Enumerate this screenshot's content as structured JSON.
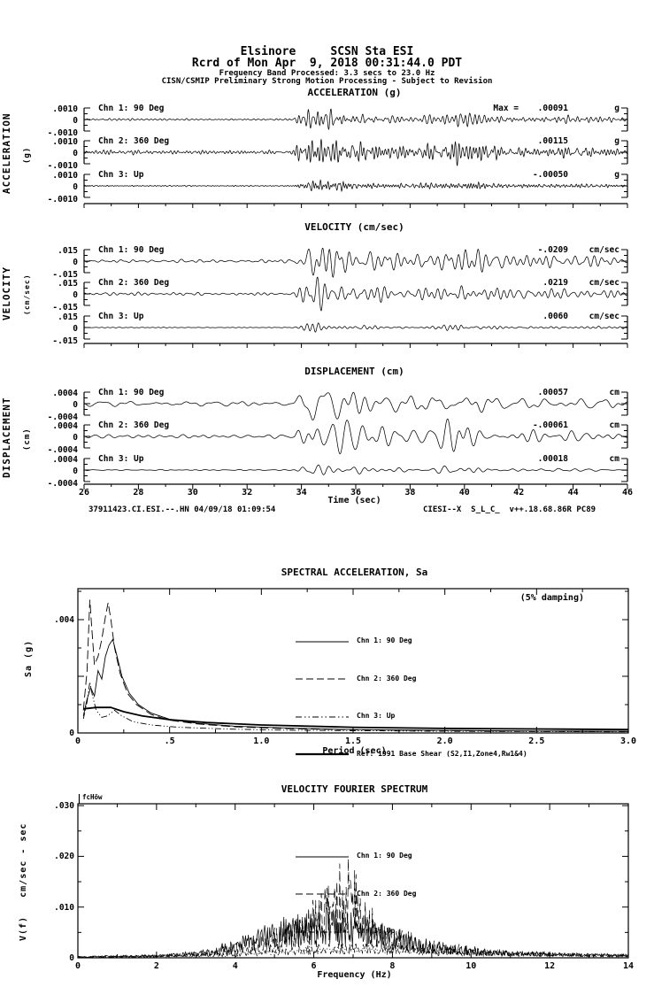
{
  "colors": {
    "foreground": "#000000",
    "background": "#ffffff"
  },
  "header": {
    "station_line": "Elsinore     SCSN Sta ESI",
    "record_line": "Rcrd of Mon Apr  9, 2018 00:31:44.0 PDT",
    "band_line": "Frequency Band Processed: 3.3 secs to 23.0 Hz",
    "disclaimer_line": "CISN/CSMIP Preliminary Strong Motion Processing - Subject to Revision"
  },
  "timeseries": {
    "xlabel": "Time (sec)",
    "footer_left": "37911423.CI.ESI.--.HN 04/09/18 01:09:54",
    "footer_right": "CIESI--X  S_L_C_  v++.18.68.86R PC89",
    "panels": [
      {
        "title": "ACCELERATION (g)",
        "axis_label": "ACCELERATION",
        "axis_unit": "(g)",
        "scale_top": ".0010",
        "scale_zero": "0",
        "scale_bottom": "-.0010",
        "channels": [
          {
            "label": "Chn 1: 90 Deg",
            "max_prefix": "Max =",
            "max_value": ".00091",
            "max_unit": "g"
          },
          {
            "label": "Chn 2: 360 Deg",
            "max_value": ".00115",
            "max_unit": "g"
          },
          {
            "label": "Chn 3: Up",
            "max_value": "-.00050",
            "max_unit": "g"
          }
        ]
      },
      {
        "title": "VELOCITY (cm/sec)",
        "axis_label": "VELOCITY",
        "axis_unit": "(cm/sec)",
        "scale_top": ".015",
        "scale_zero": "0",
        "scale_bottom": "-.015",
        "channels": [
          {
            "label": "Chn 1: 90 Deg",
            "max_value": "-.0209",
            "max_unit": "cm/sec"
          },
          {
            "label": "Chn 2: 360 Deg",
            "max_value": ".0219",
            "max_unit": "cm/sec"
          },
          {
            "label": "Chn 3: Up",
            "max_value": ".0060",
            "max_unit": "cm/sec"
          }
        ]
      },
      {
        "title": "DISPLACEMENT (cm)",
        "axis_label": "DISPLACEMENT",
        "axis_unit": "(cm)",
        "scale_top": ".0004",
        "scale_zero": "0",
        "scale_bottom": "-.0004",
        "channels": [
          {
            "label": "Chn 1: 90 Deg",
            "max_value": ".00057",
            "max_unit": "cm"
          },
          {
            "label": "Chn 2: 360 Deg",
            "max_value": "-.00061",
            "max_unit": "cm"
          },
          {
            "label": "Chn 3: Up",
            "max_value": ".00018",
            "max_unit": "cm"
          }
        ]
      }
    ]
  },
  "sa_plot": {
    "title": "SPECTRAL ACCELERATION, Sa",
    "damping_note": "(5% damping)",
    "ylabel": "Sa (g)",
    "xlabel": "Period (sec)",
    "y_tick_labels": [
      ".004",
      "0"
    ],
    "legend": [
      {
        "label": "Chn 1: 90 Deg",
        "style": "solid"
      },
      {
        "label": "Chn 2: 360 Deg",
        "style": "longdash"
      },
      {
        "label": "Chn 3: Up",
        "style": "dashdotdot"
      },
      {
        "label": "Ref: 1991 Base Shear (S2,I1,Zone4,Rw1&4)",
        "style": "ref"
      }
    ]
  },
  "fourier_plot": {
    "title": "VELOCITY FOURIER SPECTRUM",
    "fc_label": "fcHöw",
    "ylabel": "V(f)   cm/sec - sec",
    "xlabel": "Frequency (Hz)",
    "y_tick_labels": [
      ".030",
      ".020",
      ".010",
      "0"
    ],
    "legend": [
      {
        "label": "Chn 1: 90 Deg",
        "style": "solid"
      },
      {
        "label": "Chn 2: 360 Deg",
        "style": "longdash"
      },
      {
        "label": "Chn 3: Up",
        "style": "dashdot"
      }
    ]
  },
  "chart_data": [
    {
      "id": "acceleration",
      "type": "line",
      "title": "ACCELERATION (g)",
      "units": "g",
      "x_range": [
        26,
        46
      ],
      "x_ticks": [
        26,
        28,
        30,
        32,
        34,
        36,
        38,
        40,
        42,
        44,
        46
      ],
      "y_scale": 0.001,
      "channels": [
        {
          "name": "Chn 1: 90 Deg",
          "peak": 0.00091
        },
        {
          "name": "Chn 2: 360 Deg",
          "peak": 0.00115
        },
        {
          "name": "Chn 3: Up",
          "peak": -0.0005
        }
      ],
      "envelope": [
        [
          26,
          0.1
        ],
        [
          33.7,
          0.08
        ],
        [
          34.0,
          0.6
        ],
        [
          34.4,
          1.0
        ],
        [
          35.3,
          0.7
        ],
        [
          36.5,
          0.45
        ],
        [
          38,
          0.33
        ],
        [
          39.3,
          0.5
        ],
        [
          40,
          0.72
        ],
        [
          40.8,
          0.45
        ],
        [
          42,
          0.3
        ],
        [
          44,
          0.32
        ],
        [
          46,
          0.22
        ]
      ]
    },
    {
      "id": "velocity",
      "type": "line",
      "title": "VELOCITY (cm/sec)",
      "units": "cm/sec",
      "x_range": [
        26,
        46
      ],
      "x_ticks": [
        26,
        28,
        30,
        32,
        34,
        36,
        38,
        40,
        42,
        44,
        46
      ],
      "y_scale": 0.015,
      "channels": [
        {
          "name": "Chn 1: 90 Deg",
          "peak": -0.0209
        },
        {
          "name": "Chn 2: 360 Deg",
          "peak": 0.0219
        },
        {
          "name": "Chn 3: Up",
          "peak": 0.006
        }
      ],
      "envelope": [
        [
          26,
          0.1
        ],
        [
          33.7,
          0.08
        ],
        [
          34.0,
          0.6
        ],
        [
          34.4,
          1.0
        ],
        [
          35.3,
          0.7
        ],
        [
          36.5,
          0.45
        ],
        [
          38,
          0.33
        ],
        [
          39.3,
          0.5
        ],
        [
          40,
          0.72
        ],
        [
          40.8,
          0.45
        ],
        [
          42,
          0.3
        ],
        [
          44,
          0.32
        ],
        [
          46,
          0.22
        ]
      ]
    },
    {
      "id": "displacement",
      "type": "line",
      "title": "DISPLACEMENT (cm)",
      "units": "cm",
      "x_range": [
        26,
        46
      ],
      "x_ticks": [
        26,
        28,
        30,
        32,
        34,
        36,
        38,
        40,
        42,
        44,
        46
      ],
      "y_scale": 0.0004,
      "channels": [
        {
          "name": "Chn 1: 90 Deg",
          "peak": 0.00057
        },
        {
          "name": "Chn 2: 360 Deg",
          "peak": -0.00061
        },
        {
          "name": "Chn 3: Up",
          "peak": 0.00018
        }
      ],
      "envelope": [
        [
          26,
          0.1
        ],
        [
          33.7,
          0.08
        ],
        [
          34.0,
          0.6
        ],
        [
          34.4,
          1.0
        ],
        [
          35.3,
          0.7
        ],
        [
          36.5,
          0.45
        ],
        [
          38,
          0.33
        ],
        [
          39.3,
          0.5
        ],
        [
          40,
          0.72
        ],
        [
          40.8,
          0.45
        ],
        [
          42,
          0.3
        ],
        [
          44,
          0.32
        ],
        [
          46,
          0.22
        ]
      ]
    },
    {
      "id": "spectral_acceleration",
      "type": "line",
      "title": "SPECTRAL ACCELERATION, Sa",
      "xlabel": "Period (sec)",
      "ylabel": "Sa (g)",
      "xlim": [
        0,
        3.0
      ],
      "ylim": [
        0,
        0.005
      ],
      "x_ticks": [
        "0",
        ".5",
        "1.0",
        "1.5",
        "2.0",
        "2.5",
        "3.0"
      ],
      "damping": "5%",
      "series": [
        {
          "name": "Chn 1: 90 Deg",
          "style": "solid",
          "x": [
            0.03,
            0.05,
            0.07,
            0.09,
            0.11,
            0.13,
            0.15,
            0.17,
            0.19,
            0.21,
            0.24,
            0.28,
            0.33,
            0.4,
            0.5,
            0.65,
            0.85,
            1.1,
            1.5,
            2.0,
            2.5,
            3.0
          ],
          "y": [
            0.0006,
            0.0012,
            0.0016,
            0.0013,
            0.0022,
            0.0019,
            0.0027,
            0.0031,
            0.0033,
            0.0028,
            0.002,
            0.0014,
            0.001,
            0.0007,
            0.00048,
            0.00034,
            0.00024,
            0.00018,
            0.00012,
            9e-05,
            7e-05,
            6e-05
          ]
        },
        {
          "name": "Chn 2: 360 Deg",
          "style": "longdash",
          "x": [
            0.03,
            0.05,
            0.065,
            0.075,
            0.09,
            0.11,
            0.13,
            0.15,
            0.165,
            0.18,
            0.2,
            0.23,
            0.27,
            0.32,
            0.4,
            0.5,
            0.65,
            0.85,
            1.1,
            1.5,
            2.0,
            2.5,
            3.0
          ],
          "y": [
            0.0008,
            0.0022,
            0.0047,
            0.0038,
            0.0024,
            0.0027,
            0.0033,
            0.0041,
            0.0046,
            0.004,
            0.003,
            0.0021,
            0.0014,
            0.001,
            0.00065,
            0.00045,
            0.00032,
            0.00022,
            0.00016,
            0.00011,
            8e-05,
            6e-05,
            5e-05
          ]
        },
        {
          "name": "Chn 3: Up",
          "style": "dashdotdot",
          "x": [
            0.03,
            0.05,
            0.065,
            0.08,
            0.1,
            0.13,
            0.16,
            0.2,
            0.24,
            0.3,
            0.4,
            0.55,
            0.8,
            1.1,
            1.5,
            2.0,
            3.0
          ],
          "y": [
            0.0005,
            0.0011,
            0.0018,
            0.0013,
            0.0008,
            0.00055,
            0.0006,
            0.0008,
            0.0006,
            0.0004,
            0.00028,
            0.0002,
            0.00014,
            0.0001,
            8e-05,
            6e-05,
            4e-05
          ]
        },
        {
          "name": "Ref: 1991 Base Shear (S2,I1,Zone4,Rw1&4)",
          "style": "ref",
          "x": [
            0.03,
            0.1,
            0.18,
            0.25,
            0.35,
            0.5,
            0.7,
            1.0,
            1.5,
            2.0,
            2.5,
            3.0
          ],
          "y": [
            0.00085,
            0.0009,
            0.0009,
            0.00075,
            0.0006,
            0.00047,
            0.00037,
            0.00028,
            0.0002,
            0.00016,
            0.00014,
            0.00012
          ]
        }
      ]
    },
    {
      "id": "velocity_fourier_spectrum",
      "type": "line",
      "title": "VELOCITY FOURIER SPECTRUM",
      "xlabel": "Frequency (Hz)",
      "ylabel": "V(f)   cm/sec - sec",
      "xlim": [
        0,
        14
      ],
      "ylim": [
        0,
        0.03
      ],
      "x_ticks": [
        0,
        2,
        4,
        6,
        8,
        10,
        12,
        14
      ],
      "series": [
        {
          "name": "Chn 1: 90 Deg",
          "style": "solid",
          "envelope": [
            [
              0,
              0.0002
            ],
            [
              1,
              0.0004
            ],
            [
              2,
              0.0006
            ],
            [
              3,
              0.0012
            ],
            [
              4,
              0.0035
            ],
            [
              4.5,
              0.006
            ],
            [
              5,
              0.0075
            ],
            [
              5.5,
              0.009
            ],
            [
              6,
              0.0085
            ],
            [
              6.3,
              0.01
            ],
            [
              6.7,
              0.009
            ],
            [
              7,
              0.0095
            ],
            [
              7.5,
              0.008
            ],
            [
              8,
              0.006
            ],
            [
              8.5,
              0.0045
            ],
            [
              9,
              0.0035
            ],
            [
              9.5,
              0.0025
            ],
            [
              10,
              0.002
            ],
            [
              11,
              0.0013
            ],
            [
              12,
              0.001
            ],
            [
              13,
              0.0008
            ],
            [
              14,
              0.0006
            ]
          ]
        },
        {
          "name": "Chn 2: 360 Deg",
          "style": "longdash",
          "envelope": [
            [
              0,
              0.0002
            ],
            [
              2,
              0.0005
            ],
            [
              3,
              0.001
            ],
            [
              4,
              0.003
            ],
            [
              5,
              0.006
            ],
            [
              5.5,
              0.008
            ],
            [
              6,
              0.012
            ],
            [
              6.5,
              0.016
            ],
            [
              6.9,
              0.023
            ],
            [
              7.2,
              0.014
            ],
            [
              7.5,
              0.01
            ],
            [
              8,
              0.007
            ],
            [
              8.5,
              0.005
            ],
            [
              9,
              0.0035
            ],
            [
              10,
              0.0022
            ],
            [
              11,
              0.0014
            ],
            [
              12,
              0.001
            ],
            [
              13,
              0.0007
            ],
            [
              14,
              0.0005
            ]
          ]
        },
        {
          "name": "Chn 3: Up",
          "style": "dashdot",
          "envelope": [
            [
              0,
              0.0001
            ],
            [
              2,
              0.0003
            ],
            [
              3,
              0.0005
            ],
            [
              4,
              0.001
            ],
            [
              5,
              0.0018
            ],
            [
              6,
              0.0025
            ],
            [
              7,
              0.003
            ],
            [
              8,
              0.0025
            ],
            [
              9,
              0.002
            ],
            [
              10,
              0.0015
            ],
            [
              12,
              0.0008
            ],
            [
              14,
              0.0005
            ]
          ]
        }
      ]
    }
  ]
}
